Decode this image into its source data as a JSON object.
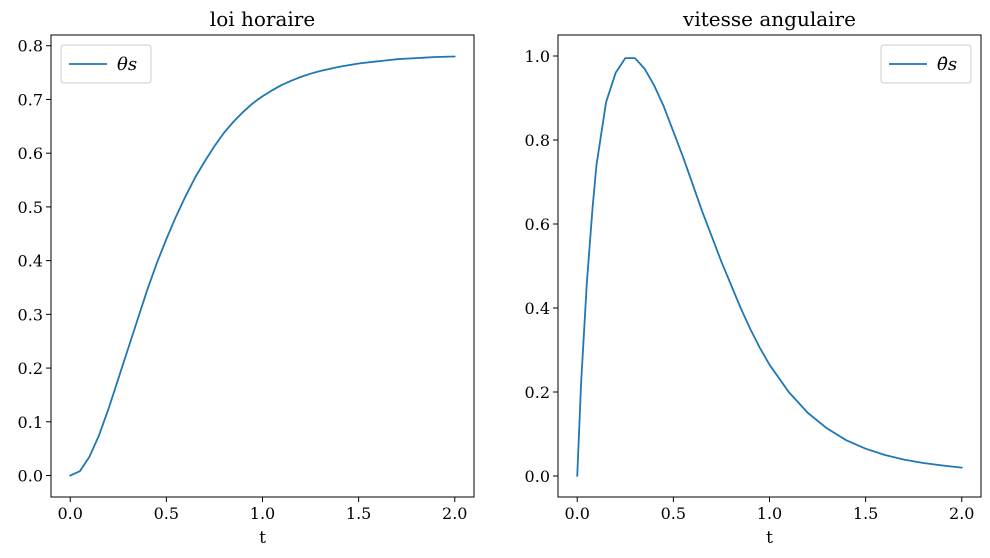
{
  "chart_data": [
    {
      "type": "line",
      "title": "loi horaire",
      "xlabel": "t",
      "ylabel": "",
      "xlim": [
        -0.1,
        2.1
      ],
      "ylim": [
        -0.04,
        0.82
      ],
      "xticks": [
        0.0,
        0.5,
        1.0,
        1.5,
        2.0
      ],
      "xtick_labels": [
        "0.0",
        "0.5",
        "1.0",
        "1.5",
        "2.0"
      ],
      "yticks": [
        0.0,
        0.1,
        0.2,
        0.3,
        0.4,
        0.5,
        0.6,
        0.7,
        0.8
      ],
      "ytick_labels": [
        "0.0",
        "0.1",
        "0.2",
        "0.3",
        "0.4",
        "0.5",
        "0.6",
        "0.7",
        "0.8"
      ],
      "grid": false,
      "legend_position": "top-left",
      "series": [
        {
          "name": "θs",
          "color": "#1f77b4",
          "x": [
            0.0,
            0.05,
            0.1,
            0.15,
            0.2,
            0.25,
            0.3,
            0.35,
            0.4,
            0.45,
            0.5,
            0.55,
            0.6,
            0.65,
            0.7,
            0.75,
            0.8,
            0.85,
            0.9,
            0.95,
            1.0,
            1.05,
            1.1,
            1.15,
            1.2,
            1.25,
            1.3,
            1.35,
            1.4,
            1.45,
            1.5,
            1.55,
            1.6,
            1.65,
            1.7,
            1.75,
            1.8,
            1.85,
            1.9,
            1.95,
            2.0
          ],
          "y": [
            0.0,
            0.008,
            0.035,
            0.075,
            0.125,
            0.18,
            0.235,
            0.29,
            0.345,
            0.395,
            0.44,
            0.482,
            0.52,
            0.555,
            0.585,
            0.613,
            0.638,
            0.659,
            0.677,
            0.693,
            0.706,
            0.717,
            0.727,
            0.735,
            0.742,
            0.748,
            0.753,
            0.757,
            0.761,
            0.764,
            0.767,
            0.769,
            0.771,
            0.773,
            0.775,
            0.776,
            0.777,
            0.778,
            0.779,
            0.7795,
            0.78
          ]
        }
      ]
    },
    {
      "type": "line",
      "title": "vitesse angulaire",
      "xlabel": "t",
      "ylabel": "",
      "xlim": [
        -0.1,
        2.1
      ],
      "ylim": [
        -0.05,
        1.05
      ],
      "xticks": [
        0.0,
        0.5,
        1.0,
        1.5,
        2.0
      ],
      "xtick_labels": [
        "0.0",
        "0.5",
        "1.0",
        "1.5",
        "2.0"
      ],
      "yticks": [
        0.0,
        0.2,
        0.4,
        0.6,
        0.8,
        1.0
      ],
      "ytick_labels": [
        "0.0",
        "0.2",
        "0.4",
        "0.6",
        "0.8",
        "1.0"
      ],
      "grid": false,
      "legend_position": "top-right",
      "series": [
        {
          "name": "θ̇s",
          "color": "#1f77b4",
          "x": [
            0.0,
            0.02,
            0.05,
            0.08,
            0.1,
            0.15,
            0.2,
            0.25,
            0.3,
            0.35,
            0.4,
            0.45,
            0.5,
            0.55,
            0.6,
            0.65,
            0.7,
            0.75,
            0.8,
            0.85,
            0.9,
            0.95,
            1.0,
            1.1,
            1.2,
            1.3,
            1.4,
            1.5,
            1.6,
            1.7,
            1.8,
            1.9,
            2.0
          ],
          "y": [
            0.0,
            0.22,
            0.46,
            0.64,
            0.74,
            0.89,
            0.96,
            0.995,
            0.995,
            0.97,
            0.93,
            0.88,
            0.82,
            0.76,
            0.695,
            0.63,
            0.57,
            0.51,
            0.455,
            0.4,
            0.35,
            0.305,
            0.265,
            0.2,
            0.15,
            0.113,
            0.085,
            0.065,
            0.05,
            0.039,
            0.031,
            0.025,
            0.02
          ]
        }
      ]
    }
  ]
}
